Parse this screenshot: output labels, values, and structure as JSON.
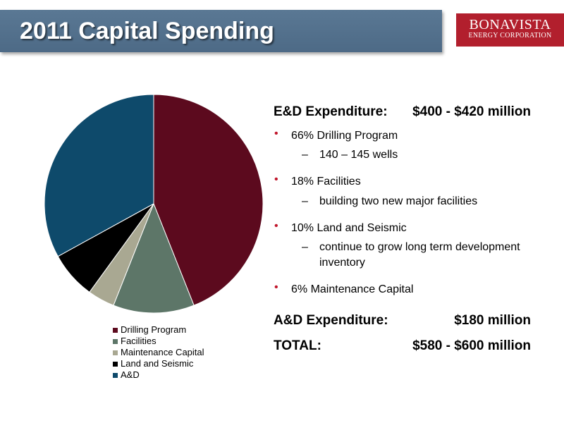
{
  "slide": {
    "title": "2011 Capital Spending"
  },
  "logo": {
    "line1": "BONAVISTA",
    "line2": "ENERGY CORPORATION"
  },
  "chart_data": {
    "type": "pie",
    "categories": [
      "Drilling Program",
      "Facilities",
      "Maintenance Capital",
      "Land and Seismic",
      "A&D"
    ],
    "values": [
      44,
      12,
      4,
      7,
      33
    ],
    "colors": [
      "#5c0a1e",
      "#5d7668",
      "#a9a892",
      "#000000",
      "#0e4a6b"
    ],
    "legend_position": "bottom"
  },
  "details": {
    "ed_label": "E&D Expenditure:",
    "ed_value": "$400 - $420 million",
    "bullets": [
      {
        "text": "66% Drilling Program",
        "sub": "140 – 145 wells"
      },
      {
        "text": "18% Facilities",
        "sub": "building two new major facilities"
      },
      {
        "text": "10% Land and Seismic",
        "sub": "continue to grow long term development inventory"
      },
      {
        "text": "6% Maintenance Capital",
        "sub": ""
      }
    ],
    "ad_label": "A&D Expenditure:",
    "ad_value": "$180 million",
    "total_label": "TOTAL:",
    "total_value": "$580 - $600 million",
    "dash_glyph": "–",
    "bullet_glyph": "•"
  }
}
